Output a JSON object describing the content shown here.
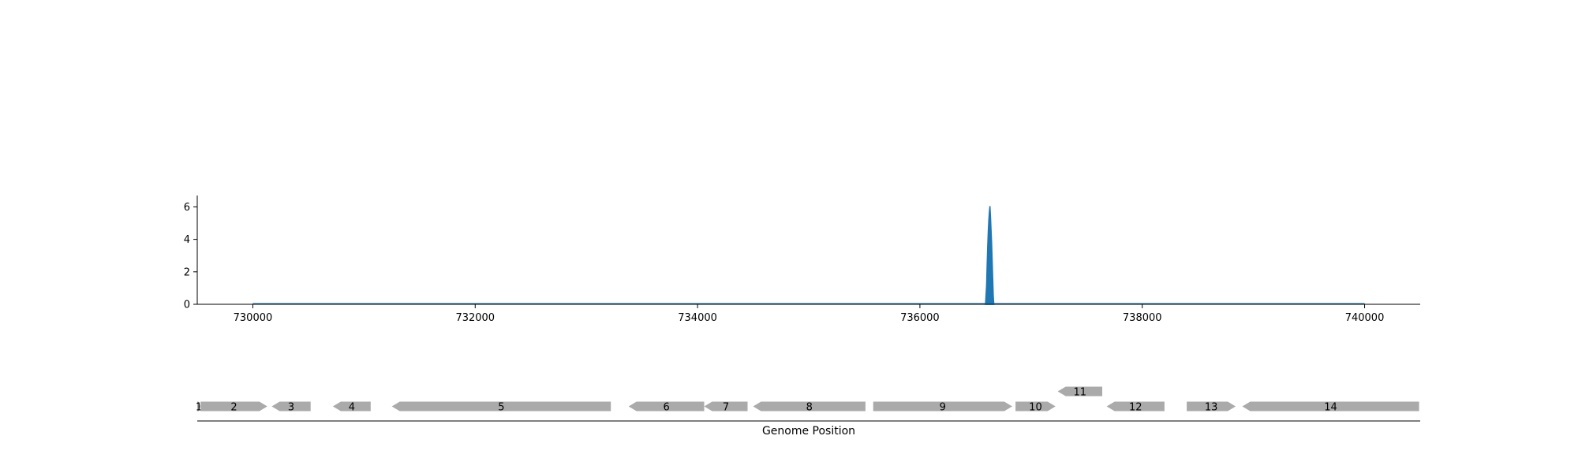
{
  "chart_data": [
    {
      "type": "area",
      "title": "",
      "xlabel": "",
      "ylabel": "",
      "xlim": [
        729500,
        740500
      ],
      "ylim": [
        0,
        6.7
      ],
      "x_ticks": [
        730000,
        732000,
        734000,
        736000,
        738000,
        740000
      ],
      "x_tick_labels": [
        "730000",
        "732000",
        "734000",
        "736000",
        "738000",
        "740000"
      ],
      "y_ticks": [
        0,
        2,
        4,
        6
      ],
      "y_tick_labels": [
        "0",
        "2",
        "4",
        "6"
      ],
      "baseline_range": [
        730000,
        740000
      ],
      "color": "#1f77b4",
      "series": [
        {
          "x": [
            736590,
            736600,
            736605,
            736610,
            736615,
            736620,
            736625,
            736630,
            736635,
            736640,
            736645,
            736650,
            736655,
            736660,
            736665
          ],
          "y": [
            0,
            1.2,
            2.5,
            3.6,
            4.5,
            5.2,
            5.7,
            6.05,
            5.4,
            4.6,
            3.8,
            2.7,
            1.6,
            0.5,
            0
          ]
        }
      ]
    },
    {
      "type": "gene-track",
      "xlabel": "Genome Position",
      "xlim": [
        729500,
        740500
      ],
      "color": "#aaaaaa",
      "genes": [
        {
          "label": "1",
          "start": 729500,
          "end": 729530,
          "strand": "+",
          "row": 0
        },
        {
          "label": "2",
          "start": 729530,
          "end": 730130,
          "strand": "+",
          "row": 0
        },
        {
          "label": "3",
          "start": 730170,
          "end": 730520,
          "strand": "-",
          "row": 0
        },
        {
          "label": "4",
          "start": 730720,
          "end": 731060,
          "strand": "-",
          "row": 0
        },
        {
          "label": "5",
          "start": 731250,
          "end": 733220,
          "strand": "-",
          "row": 0
        },
        {
          "label": "6",
          "start": 733380,
          "end": 734060,
          "strand": "-",
          "row": 0
        },
        {
          "label": "7",
          "start": 734060,
          "end": 734450,
          "strand": "-",
          "row": 0
        },
        {
          "label": "8",
          "start": 734500,
          "end": 735510,
          "strand": "-",
          "row": 0
        },
        {
          "label": "9",
          "start": 735580,
          "end": 736830,
          "strand": "+",
          "row": 0
        },
        {
          "label": "10",
          "start": 736860,
          "end": 737220,
          "strand": "+",
          "row": 0
        },
        {
          "label": "11",
          "start": 737240,
          "end": 737640,
          "strand": "-",
          "row": 1
        },
        {
          "label": "12",
          "start": 737680,
          "end": 738200,
          "strand": "-",
          "row": 0
        },
        {
          "label": "13",
          "start": 738400,
          "end": 738840,
          "strand": "+",
          "row": 0
        },
        {
          "label": "14",
          "start": 738900,
          "end": 740490,
          "strand": "-",
          "row": 0
        }
      ]
    }
  ]
}
